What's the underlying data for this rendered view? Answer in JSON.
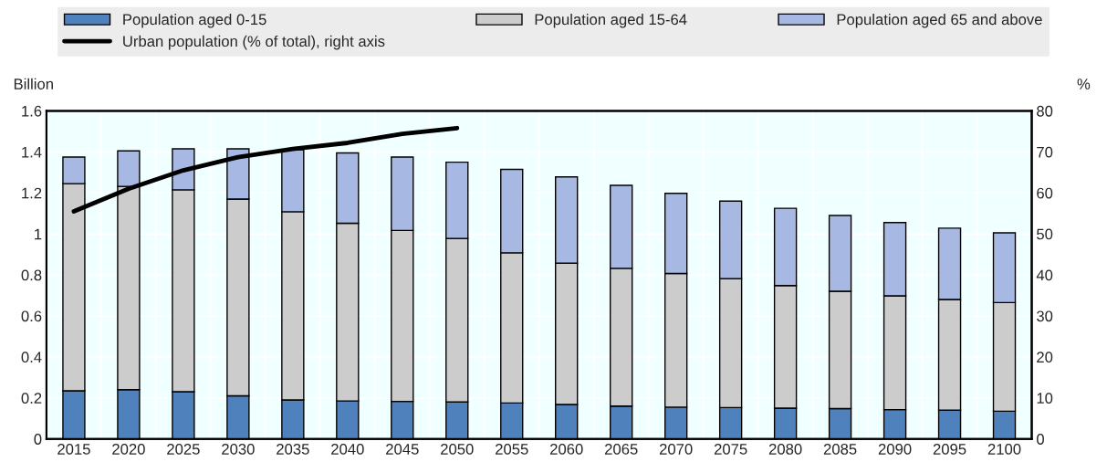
{
  "chart_data": {
    "type": "bar",
    "stacked": true,
    "categories": [
      "2015",
      "2020",
      "2025",
      "2030",
      "2035",
      "2040",
      "2045",
      "2050",
      "2055",
      "2060",
      "2065",
      "2070",
      "2075",
      "2080",
      "2085",
      "2090",
      "2095",
      "2100"
    ],
    "ylabel": "Billion",
    "y2label": "%",
    "ylim": [
      0,
      1.6
    ],
    "yticks": [
      0,
      0.2,
      0.4,
      0.6,
      0.8,
      1,
      1.2,
      1.4,
      1.6
    ],
    "y2lim": [
      0,
      80
    ],
    "y2ticks": [
      0,
      10,
      20,
      30,
      40,
      50,
      60,
      70,
      80
    ],
    "grid": true,
    "legend": "top",
    "series": [
      {
        "name": "Population aged 0-15",
        "color": "#4f81bd",
        "values": [
          0.235,
          0.24,
          0.23,
          0.21,
          0.19,
          0.185,
          0.183,
          0.18,
          0.175,
          0.168,
          0.16,
          0.155,
          0.153,
          0.15,
          0.148,
          0.143,
          0.14,
          0.135
        ]
      },
      {
        "name": "Population aged 15-64",
        "color": "#cccccc",
        "values": [
          1.01,
          0.992,
          0.985,
          0.96,
          0.918,
          0.867,
          0.834,
          0.798,
          0.733,
          0.689,
          0.672,
          0.652,
          0.629,
          0.598,
          0.572,
          0.555,
          0.54,
          0.53
        ]
      },
      {
        "name": "Population aged 65 and above",
        "color": "#a7b8e2",
        "values": [
          0.13,
          0.173,
          0.2,
          0.245,
          0.302,
          0.343,
          0.358,
          0.372,
          0.407,
          0.421,
          0.405,
          0.391,
          0.378,
          0.377,
          0.37,
          0.357,
          0.348,
          0.34
        ]
      },
      {
        "name": "Urban population (% of total), right axis",
        "type": "line",
        "axis": "y2",
        "color": "#000000",
        "values": [
          55.5,
          61,
          65.5,
          68.7,
          70.7,
          72.2,
          74.4,
          75.8,
          null,
          null,
          null,
          null,
          null,
          null,
          null,
          null,
          null,
          null
        ]
      }
    ]
  }
}
